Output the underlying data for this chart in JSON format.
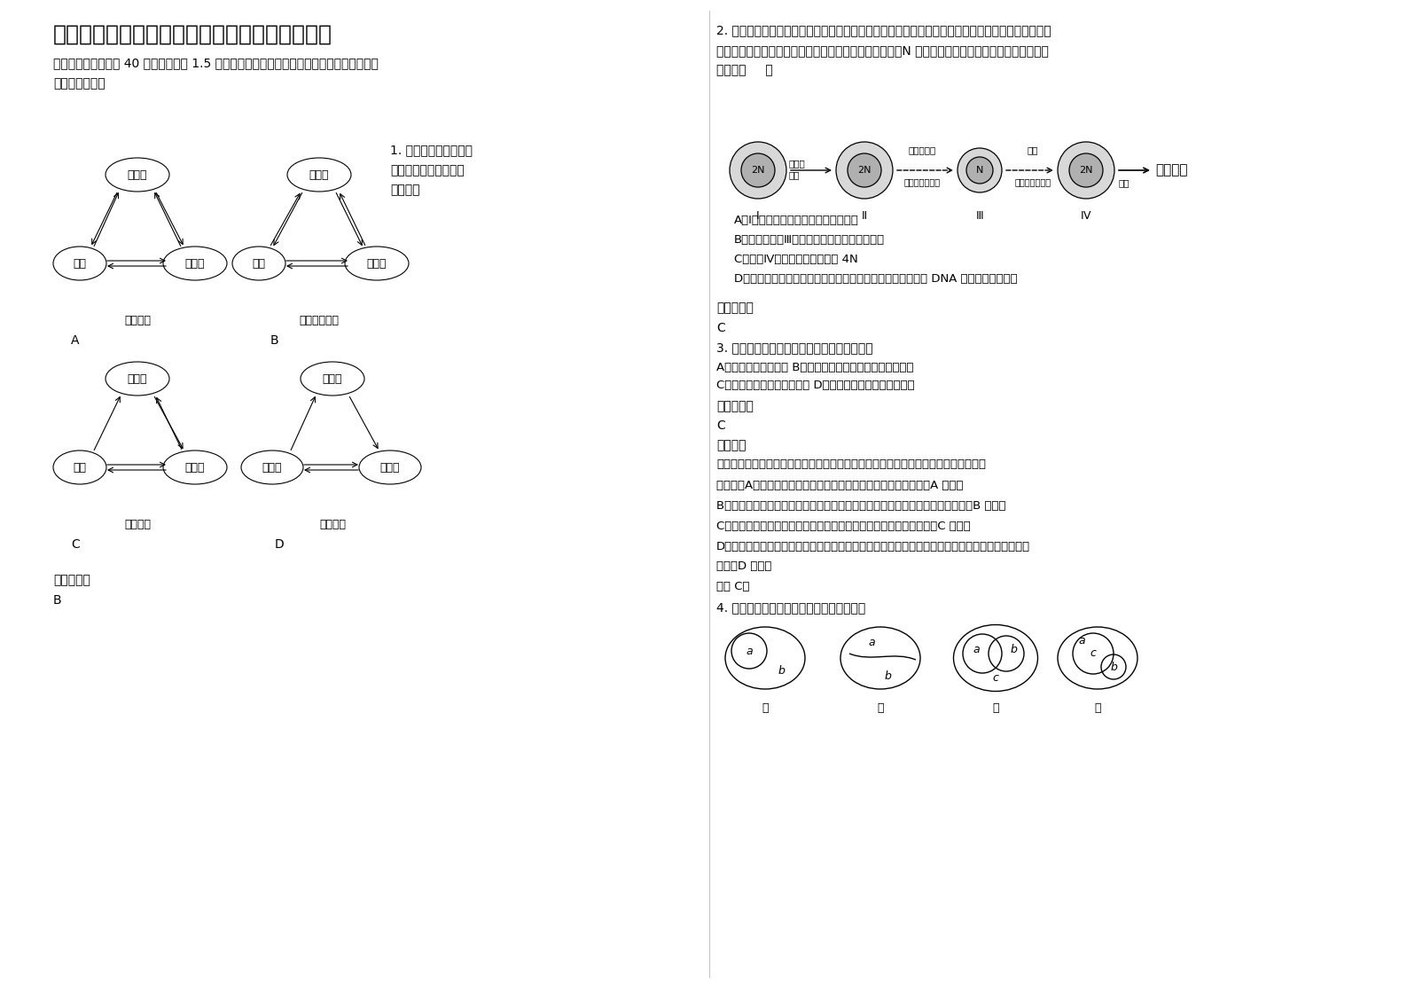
{
  "title": "江苏省徐州市郑集中学高三生物联考试卷含解析",
  "section1_header": "一、选择题（本题共 40 小题，每小题 1.5 分。在每小题给出的四个选项中，只有一项是符合\n题目要求的。）",
  "q1_text": "1. 小杨同学将部分生物\n学知识归纳如下，其中\n正确的是",
  "diagram_A_label": "物质流动",
  "diagram_B_label": "激素分泌调节",
  "diagram_C_label": "血糖调节",
  "diagram_D_label": "能量流动",
  "label_A": "A",
  "label_B": "B",
  "label_C": "C",
  "label_D": "D",
  "ref_answer": "参考答案：",
  "answer_1": "B",
  "q2_text": "2. 哺乳动物卵原细胞减数分裂形成成熟卵细胞的过程，只有在促性腺激素和精子的诱导下才能完成。\n下面为某哺乳动物卵细胞及早期胚胎的形成过程示意图（N 表示染色体组）。据图分析，下列叙述正\n确的是（     ）",
  "q2_option_A": "A．Ⅰ为培育转基因动物理想的受体细胞",
  "q2_option_B": "B．通过对细胞Ⅲ的培养，可得该生物的单倍体",
  "q2_option_C": "C．细胞Ⅳ中染色体数目最大为 4N",
  "q2_option_D": "D．随着卵裂的进行，不考虑突变，卵裂球的每个细胞核中的 DNA 含量始终保持不变",
  "ref_answer2": "参考答案：",
  "answer_2": "C",
  "q3_text": "3. 下列选项中均属于人体内环境组成成分的是",
  "q3_option_AB": "A．血液、抗体、糖原 B．血红蛋白、葡萄糖、乙酰胆碱受体",
  "q3_option_CD": "C．胰岛素、神经递质、甘油 D．呼吸酶、胰蛋白酶、麦芽糖",
  "ref_answer3": "参考答案：",
  "answer_3": "C",
  "analysis_header": "【分析】",
  "analysis_text": "细胞外液是多细胞动物体内细胞直接接触的生活环境，主要包括血浆、组织液和淋巴。",
  "detail_header": "【详解】A、糖原存在于肝细胞或肌细胞内，不属于内环境的成分，A 错误；",
  "detail_B": "B、血红蛋白存在于红细胞，乙酰胆碱受体存在于细胞膜，不属于内环境的成分，B 错误；",
  "detail_C": "C、胰岛素、神经递质、甘油可以存在内环境中，属于内环境的成分，C 正确；",
  "detail_D1": "D、呼吸酶存在于细胞内，胰蛋白酶存在于消化液中，麦芽糖存在于植物细胞内，均不属于内环境的",
  "detail_D2": "成分，D 错误。",
  "故选": "故选 C。",
  "q4_text": "4. 下列根据各概念图作出的判断，正确的是",
  "background_color": "#ffffff",
  "text_color": "#000000"
}
